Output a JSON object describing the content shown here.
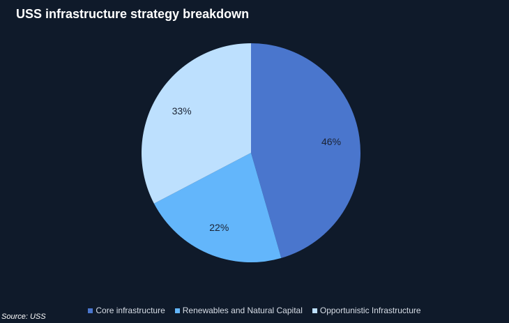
{
  "chart_data": {
    "type": "pie",
    "title": "USS infrastructure strategy breakdown",
    "slices": [
      {
        "label": "Core infrastructure",
        "value": 46,
        "display": "46%",
        "color": "#4a76cd"
      },
      {
        "label": "Renewables and Natural Capital",
        "value": 22,
        "display": "22%",
        "color": "#63b6fb"
      },
      {
        "label": "Opportunistic Infrastructure",
        "value": 33,
        "display": "33%",
        "color": "#bde0fe"
      }
    ],
    "legend_position": "bottom",
    "source": "Source: USS"
  }
}
